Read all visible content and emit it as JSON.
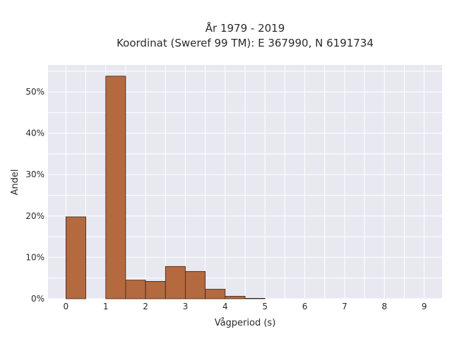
{
  "chart_data": {
    "type": "bar",
    "title_lines": [
      "År 1979 - 2019",
      "Koordinat (Sweref 99 TM): E 367990, N 6191734"
    ],
    "xlabel": "Vågperiod (s)",
    "ylabel": "Andel",
    "bin_width": 0.5,
    "bins": [
      {
        "x": 0.0,
        "value": 19.8
      },
      {
        "x": 0.5,
        "value": 0.0
      },
      {
        "x": 1.0,
        "value": 53.8
      },
      {
        "x": 1.5,
        "value": 4.5
      },
      {
        "x": 2.0,
        "value": 4.2
      },
      {
        "x": 2.5,
        "value": 7.8
      },
      {
        "x": 3.0,
        "value": 6.6
      },
      {
        "x": 3.5,
        "value": 2.3
      },
      {
        "x": 4.0,
        "value": 0.6
      },
      {
        "x": 4.5,
        "value": 0.1
      }
    ],
    "xlim": [
      -0.45,
      9.45
    ],
    "ylim": [
      0,
      56.5
    ],
    "xticks": [
      "0",
      "1",
      "2",
      "3",
      "4",
      "5",
      "6",
      "7",
      "8",
      "9"
    ],
    "yticks": [
      "0%",
      "10%",
      "20%",
      "30%",
      "40%",
      "50%"
    ],
    "grid": true,
    "colors": {
      "bar_fill": "#b5693f",
      "bar_stroke": "#3a2418",
      "plot_bg": "#e8e8f1",
      "grid": "#ffffff"
    }
  }
}
